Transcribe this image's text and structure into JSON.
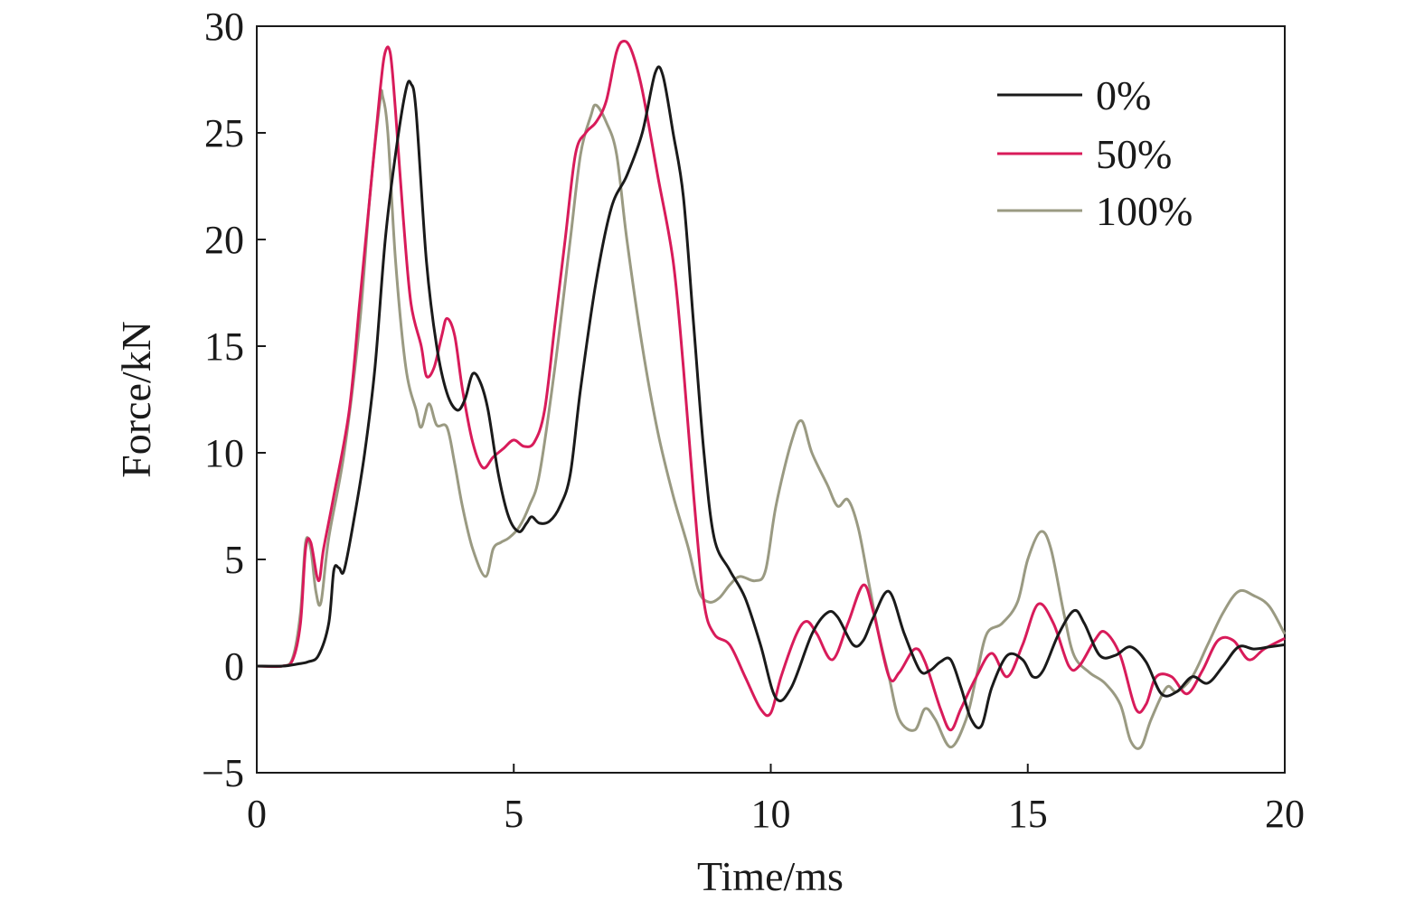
{
  "chart_data": {
    "type": "line",
    "xlabel": "Time/ms",
    "ylabel": "Force/kN",
    "xlim": [
      0,
      20
    ],
    "ylim": [
      -5,
      30
    ],
    "x_ticks": [
      "0",
      "5",
      "10",
      "15",
      "20"
    ],
    "y_ticks": [
      "−5",
      "0",
      "5",
      "10",
      "15",
      "20",
      "25",
      "30"
    ],
    "grid": false,
    "legend_position": "top-right",
    "series": [
      {
        "name": "0%",
        "color": "#1a1a1a",
        "points": [
          [
            0,
            0
          ],
          [
            0.5,
            0
          ],
          [
            0.8,
            0.1
          ],
          [
            1.0,
            0.2
          ],
          [
            1.2,
            0.5
          ],
          [
            1.4,
            2.0
          ],
          [
            1.5,
            4.5
          ],
          [
            1.6,
            4.6
          ],
          [
            1.7,
            4.5
          ],
          [
            1.9,
            7
          ],
          [
            2.1,
            10
          ],
          [
            2.3,
            14
          ],
          [
            2.5,
            20
          ],
          [
            2.7,
            24
          ],
          [
            2.9,
            27
          ],
          [
            3.0,
            27.3
          ],
          [
            3.1,
            26
          ],
          [
            3.3,
            19
          ],
          [
            3.5,
            15
          ],
          [
            3.7,
            12.8
          ],
          [
            3.9,
            12.0
          ],
          [
            4.05,
            12.5
          ],
          [
            4.2,
            13.7
          ],
          [
            4.35,
            13.3
          ],
          [
            4.5,
            12
          ],
          [
            4.7,
            9
          ],
          [
            4.9,
            7
          ],
          [
            5.1,
            6.3
          ],
          [
            5.25,
            6.7
          ],
          [
            5.35,
            7.0
          ],
          [
            5.5,
            6.7
          ],
          [
            5.7,
            6.8
          ],
          [
            5.9,
            7.5
          ],
          [
            6.1,
            9
          ],
          [
            6.3,
            13
          ],
          [
            6.6,
            18
          ],
          [
            6.9,
            21.5
          ],
          [
            7.2,
            23
          ],
          [
            7.5,
            25
          ],
          [
            7.75,
            27.8
          ],
          [
            7.9,
            27.7
          ],
          [
            8.1,
            25
          ],
          [
            8.3,
            22
          ],
          [
            8.5,
            16
          ],
          [
            8.7,
            10
          ],
          [
            8.9,
            6
          ],
          [
            9.2,
            4.5
          ],
          [
            9.5,
            3.2
          ],
          [
            9.8,
            1.0
          ],
          [
            10.1,
            -1.5
          ],
          [
            10.4,
            -1.0
          ],
          [
            10.8,
            1.5
          ],
          [
            11.1,
            2.5
          ],
          [
            11.3,
            2.3
          ],
          [
            11.6,
            1.0
          ],
          [
            11.8,
            1.2
          ],
          [
            12.0,
            2.3
          ],
          [
            12.3,
            3.5
          ],
          [
            12.6,
            1.5
          ],
          [
            12.9,
            -0.2
          ],
          [
            13.1,
            -0.2
          ],
          [
            13.3,
            0.2
          ],
          [
            13.5,
            0.3
          ],
          [
            13.7,
            -1.0
          ],
          [
            13.9,
            -2.5
          ],
          [
            14.1,
            -2.8
          ],
          [
            14.3,
            -1.0
          ],
          [
            14.6,
            0.5
          ],
          [
            14.9,
            0.3
          ],
          [
            15.1,
            -0.5
          ],
          [
            15.3,
            -0.2
          ],
          [
            15.6,
            1.5
          ],
          [
            15.9,
            2.6
          ],
          [
            16.1,
            2.0
          ],
          [
            16.4,
            0.5
          ],
          [
            16.7,
            0.5
          ],
          [
            17.0,
            0.9
          ],
          [
            17.3,
            0.2
          ],
          [
            17.6,
            -1.3
          ],
          [
            17.9,
            -1.2
          ],
          [
            18.2,
            -0.5
          ],
          [
            18.5,
            -0.8
          ],
          [
            18.8,
            0
          ],
          [
            19.1,
            0.9
          ],
          [
            19.4,
            0.8
          ],
          [
            19.7,
            0.9
          ],
          [
            20,
            1.0
          ]
        ]
      },
      {
        "name": "50%",
        "color": "#d81b5a",
        "points": [
          [
            0,
            0
          ],
          [
            0.5,
            0
          ],
          [
            0.7,
            0.3
          ],
          [
            0.85,
            2
          ],
          [
            0.95,
            5.5
          ],
          [
            1.05,
            5.8
          ],
          [
            1.2,
            4
          ],
          [
            1.3,
            5.5
          ],
          [
            1.5,
            8
          ],
          [
            1.8,
            12
          ],
          [
            2.0,
            17
          ],
          [
            2.2,
            22
          ],
          [
            2.4,
            27
          ],
          [
            2.5,
            28.8
          ],
          [
            2.6,
            28.7
          ],
          [
            2.7,
            26
          ],
          [
            2.85,
            21
          ],
          [
            3.0,
            17
          ],
          [
            3.2,
            15
          ],
          [
            3.3,
            13.6
          ],
          [
            3.45,
            14
          ],
          [
            3.6,
            15.5
          ],
          [
            3.7,
            16.3
          ],
          [
            3.85,
            15.5
          ],
          [
            4.0,
            13
          ],
          [
            4.2,
            10.5
          ],
          [
            4.4,
            9.3
          ],
          [
            4.6,
            9.8
          ],
          [
            4.8,
            10.2
          ],
          [
            5.0,
            10.6
          ],
          [
            5.2,
            10.3
          ],
          [
            5.4,
            10.5
          ],
          [
            5.6,
            12
          ],
          [
            5.8,
            16
          ],
          [
            6.0,
            20
          ],
          [
            6.2,
            24
          ],
          [
            6.4,
            25
          ],
          [
            6.6,
            25.5
          ],
          [
            6.8,
            26.5
          ],
          [
            7.0,
            28.8
          ],
          [
            7.15,
            29.3
          ],
          [
            7.3,
            28.8
          ],
          [
            7.5,
            27
          ],
          [
            7.8,
            23
          ],
          [
            8.1,
            19
          ],
          [
            8.3,
            14
          ],
          [
            8.5,
            8
          ],
          [
            8.7,
            3
          ],
          [
            8.9,
            1.5
          ],
          [
            9.2,
            1.0
          ],
          [
            9.5,
            -0.5
          ],
          [
            9.8,
            -2.0
          ],
          [
            10.0,
            -2.2
          ],
          [
            10.2,
            -0.5
          ],
          [
            10.5,
            1.5
          ],
          [
            10.7,
            2.1
          ],
          [
            10.9,
            1.5
          ],
          [
            11.2,
            0.3
          ],
          [
            11.5,
            2.0
          ],
          [
            11.8,
            3.8
          ],
          [
            12.0,
            2.5
          ],
          [
            12.3,
            -0.5
          ],
          [
            12.5,
            -0.3
          ],
          [
            12.8,
            0.8
          ],
          [
            13.0,
            0.2
          ],
          [
            13.3,
            -2
          ],
          [
            13.5,
            -3.0
          ],
          [
            13.7,
            -2
          ],
          [
            14.0,
            -0.5
          ],
          [
            14.3,
            0.6
          ],
          [
            14.6,
            -0.5
          ],
          [
            14.9,
            1.0
          ],
          [
            15.2,
            2.9
          ],
          [
            15.5,
            2.0
          ],
          [
            15.8,
            0
          ],
          [
            16.0,
            0
          ],
          [
            16.3,
            1.2
          ],
          [
            16.5,
            1.6
          ],
          [
            16.8,
            0.5
          ],
          [
            17.1,
            -2.0
          ],
          [
            17.3,
            -1.8
          ],
          [
            17.5,
            -0.5
          ],
          [
            17.8,
            -0.5
          ],
          [
            18.1,
            -1.3
          ],
          [
            18.4,
            -0.2
          ],
          [
            18.7,
            1.2
          ],
          [
            19.0,
            1.2
          ],
          [
            19.3,
            0.3
          ],
          [
            19.6,
            0.8
          ],
          [
            20,
            1.3
          ]
        ]
      },
      {
        "name": "100%",
        "color": "#9a9a82",
        "points": [
          [
            0,
            0
          ],
          [
            0.5,
            0
          ],
          [
            0.7,
            0.4
          ],
          [
            0.85,
            2.5
          ],
          [
            0.95,
            5.8
          ],
          [
            1.05,
            5.5
          ],
          [
            1.15,
            3.5
          ],
          [
            1.25,
            3.0
          ],
          [
            1.4,
            6
          ],
          [
            1.7,
            10
          ],
          [
            2.0,
            16
          ],
          [
            2.2,
            22
          ],
          [
            2.4,
            26.5
          ],
          [
            2.45,
            26.7
          ],
          [
            2.55,
            25
          ],
          [
            2.7,
            19
          ],
          [
            2.9,
            14
          ],
          [
            3.1,
            12
          ],
          [
            3.2,
            11.2
          ],
          [
            3.35,
            12.3
          ],
          [
            3.5,
            11.3
          ],
          [
            3.7,
            11.2
          ],
          [
            3.85,
            9.5
          ],
          [
            4.0,
            7.5
          ],
          [
            4.2,
            5.5
          ],
          [
            4.45,
            4.2
          ],
          [
            4.6,
            5.5
          ],
          [
            4.75,
            5.8
          ],
          [
            4.9,
            6
          ],
          [
            5.1,
            6.5
          ],
          [
            5.3,
            7.5
          ],
          [
            5.5,
            9
          ],
          [
            5.8,
            14
          ],
          [
            6.1,
            20
          ],
          [
            6.3,
            24
          ],
          [
            6.5,
            25.8
          ],
          [
            6.6,
            26.3
          ],
          [
            6.8,
            25.5
          ],
          [
            7.0,
            24
          ],
          [
            7.2,
            20
          ],
          [
            7.5,
            15
          ],
          [
            7.8,
            11
          ],
          [
            8.1,
            8
          ],
          [
            8.4,
            5.5
          ],
          [
            8.6,
            3.5
          ],
          [
            8.8,
            3.0
          ],
          [
            9.0,
            3.2
          ],
          [
            9.2,
            3.8
          ],
          [
            9.4,
            4.2
          ],
          [
            9.7,
            4.0
          ],
          [
            9.9,
            4.5
          ],
          [
            10.1,
            7.5
          ],
          [
            10.4,
            10.5
          ],
          [
            10.6,
            11.5
          ],
          [
            10.8,
            10
          ],
          [
            11.1,
            8.5
          ],
          [
            11.3,
            7.5
          ],
          [
            11.5,
            7.8
          ],
          [
            11.7,
            6.5
          ],
          [
            11.9,
            4
          ],
          [
            12.1,
            1.5
          ],
          [
            12.3,
            -0.5
          ],
          [
            12.5,
            -2.5
          ],
          [
            12.8,
            -3.0
          ],
          [
            13.0,
            -2.0
          ],
          [
            13.2,
            -2.5
          ],
          [
            13.5,
            -3.8
          ],
          [
            13.8,
            -2.5
          ],
          [
            14.0,
            -0.5
          ],
          [
            14.2,
            1.5
          ],
          [
            14.5,
            2.0
          ],
          [
            14.8,
            3.0
          ],
          [
            15.0,
            5.0
          ],
          [
            15.25,
            6.3
          ],
          [
            15.45,
            5.5
          ],
          [
            15.7,
            2.5
          ],
          [
            15.9,
            0.5
          ],
          [
            16.2,
            -0.3
          ],
          [
            16.5,
            -0.8
          ],
          [
            16.8,
            -1.8
          ],
          [
            17.0,
            -3.5
          ],
          [
            17.2,
            -3.8
          ],
          [
            17.4,
            -2.5
          ],
          [
            17.7,
            -1
          ],
          [
            17.9,
            -1.2
          ],
          [
            18.2,
            -0.5
          ],
          [
            18.5,
            1.0
          ],
          [
            18.8,
            2.5
          ],
          [
            19.1,
            3.5
          ],
          [
            19.4,
            3.3
          ],
          [
            19.7,
            2.8
          ],
          [
            20,
            1.5
          ]
        ]
      }
    ]
  }
}
